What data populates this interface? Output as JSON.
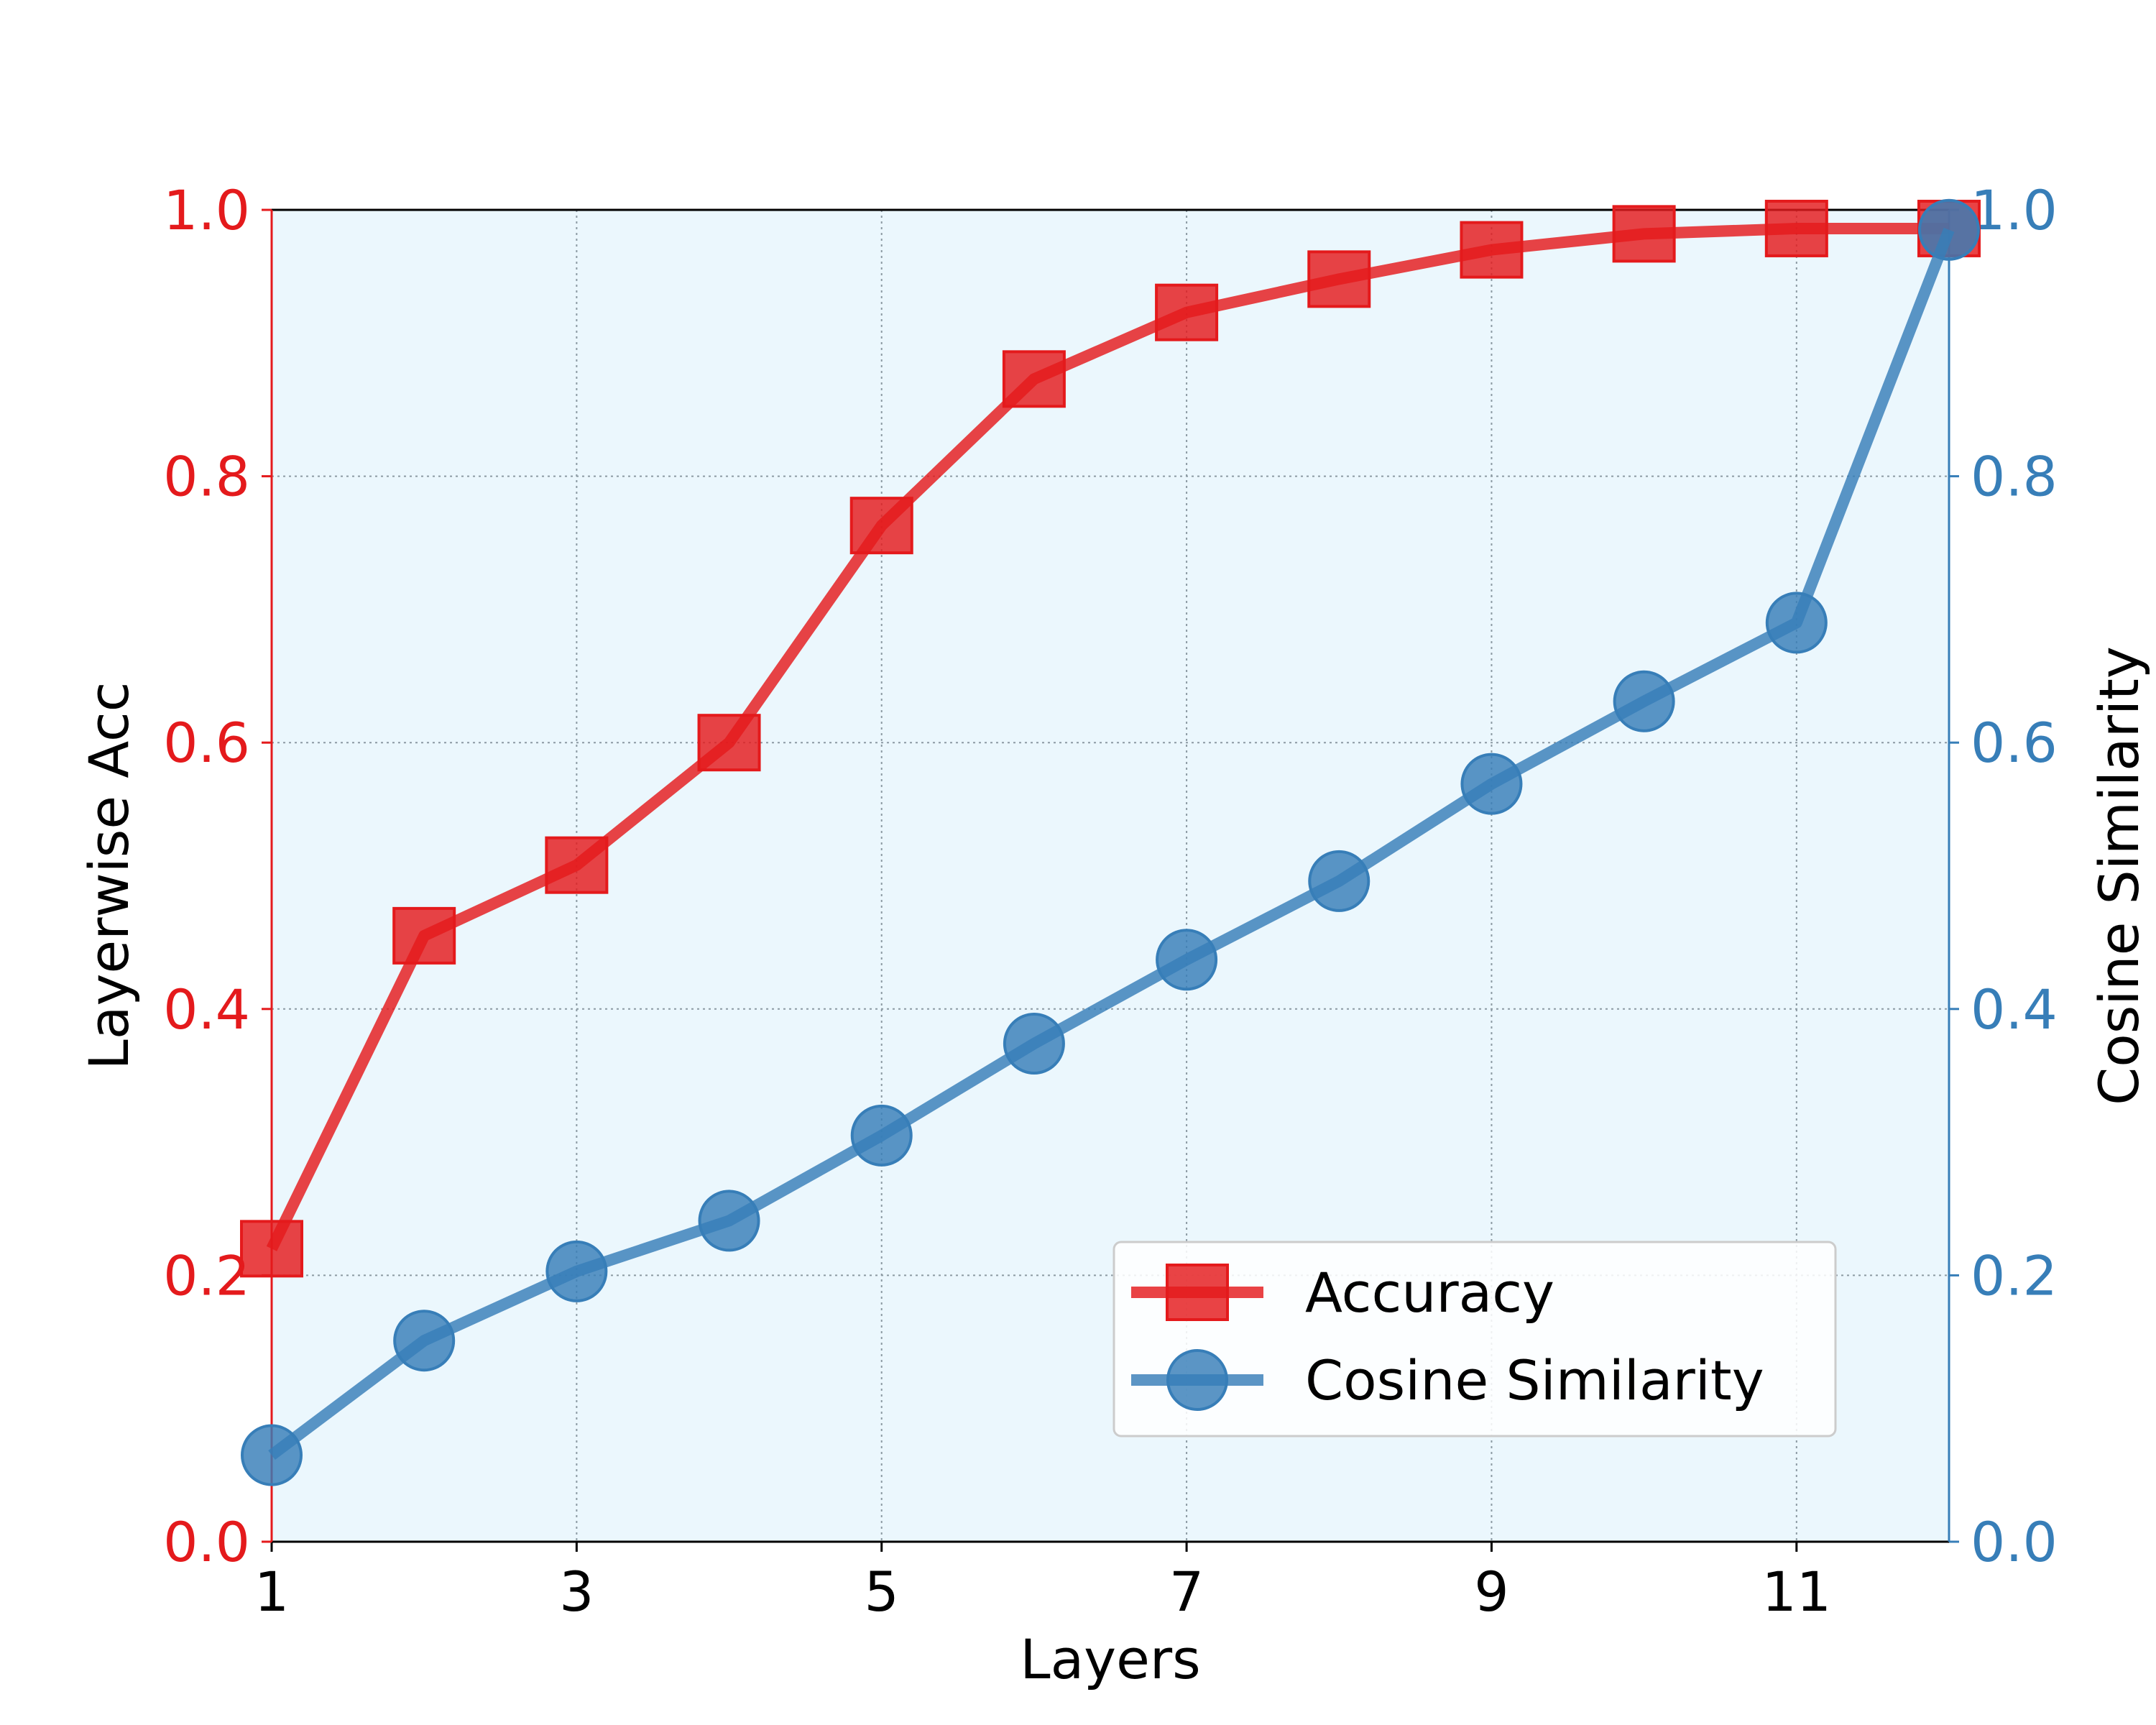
{
  "chart_data": {
    "type": "line",
    "x": [
      1,
      2,
      3,
      4,
      5,
      6,
      7,
      8,
      9,
      10,
      11,
      12
    ],
    "xlabel": "Layers",
    "xlim": [
      1,
      12
    ],
    "x_ticks": [
      1,
      3,
      5,
      7,
      9,
      11
    ],
    "x_tick_labels": [
      "1",
      "3",
      "5",
      "7",
      "9",
      "11"
    ],
    "ylabel_left": "Layerwise Acc",
    "ylabel_right": "Cosine Similarity",
    "ylim_left": [
      0.0,
      1.0
    ],
    "ylim_right": [
      0.0,
      1.0
    ],
    "y_ticks": [
      0.0,
      0.2,
      0.4,
      0.6,
      0.8,
      1.0
    ],
    "y_tick_labels": [
      "0.0",
      "0.2",
      "0.4",
      "0.6",
      "0.8",
      "1.0"
    ],
    "grid": true,
    "legend_position": "lower-right",
    "series": [
      {
        "name": "Accuracy",
        "axis": "left",
        "marker": "square",
        "color": "#e41a1c",
        "values": [
          0.22,
          0.455,
          0.508,
          0.6,
          0.763,
          0.873,
          0.923,
          0.948,
          0.97,
          0.982,
          0.986,
          0.986
        ]
      },
      {
        "name": "Cosine Similarity",
        "axis": "right",
        "marker": "circle",
        "color": "#377eb8",
        "values": [
          0.065,
          0.151,
          0.203,
          0.241,
          0.305,
          0.374,
          0.437,
          0.496,
          0.569,
          0.631,
          0.69,
          0.985
        ]
      }
    ],
    "colors": {
      "plot_background": "#ebf7fd",
      "left_axis": "#e41a1c",
      "right_axis": "#377eb8",
      "grid": "#8c9aa3"
    }
  }
}
